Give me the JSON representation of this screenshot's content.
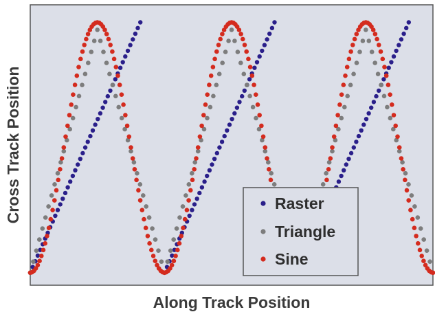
{
  "chart_data": {
    "type": "scatter",
    "title": "",
    "xlabel": "Along Track Position",
    "ylabel": "Cross Track Position",
    "xlim": [
      0,
      3
    ],
    "ylim": [
      -0.05,
      1.07
    ],
    "grid": false,
    "legend_position": "bottom-right",
    "background_color": "#dcdfe8",
    "series": [
      {
        "name": "Raster",
        "color": "#2a1f8a",
        "pattern": "sawtooth",
        "period": 1.0,
        "ramp_fraction": 0.82,
        "x": [
          0,
          0.41,
          0.82,
          1.0,
          1.41,
          1.82,
          2.0,
          2.41,
          2.82
        ],
        "y": [
          0,
          0.5,
          1.0,
          0,
          0.5,
          1.0,
          0,
          0.5,
          1.0
        ]
      },
      {
        "name": "Triangle",
        "color": "#7d7d7d",
        "pattern": "triangle",
        "period": 1.0,
        "x": [
          0,
          0.25,
          0.5,
          0.75,
          1.0,
          1.25,
          1.5,
          1.75,
          2.0,
          2.25,
          2.5,
          2.75,
          3.0
        ],
        "y": [
          0,
          0.5,
          0.97,
          0.5,
          0,
          0.5,
          0.97,
          0.5,
          0,
          0.5,
          0.97,
          0.5,
          0
        ]
      },
      {
        "name": "Sine",
        "color": "#d42b1e",
        "pattern": "sine",
        "period": 1.0,
        "x": [
          0,
          0.25,
          0.5,
          0.75,
          1.0,
          1.25,
          1.5,
          1.75,
          2.0,
          2.25,
          2.5,
          2.75,
          3.0
        ],
        "y": [
          0,
          0.5,
          1.0,
          0.5,
          0,
          0.5,
          1.0,
          0.5,
          0,
          0.5,
          1.0,
          0.5,
          0
        ]
      }
    ],
    "legend": {
      "entries": [
        "Raster",
        "Triangle",
        "Sine"
      ]
    }
  }
}
